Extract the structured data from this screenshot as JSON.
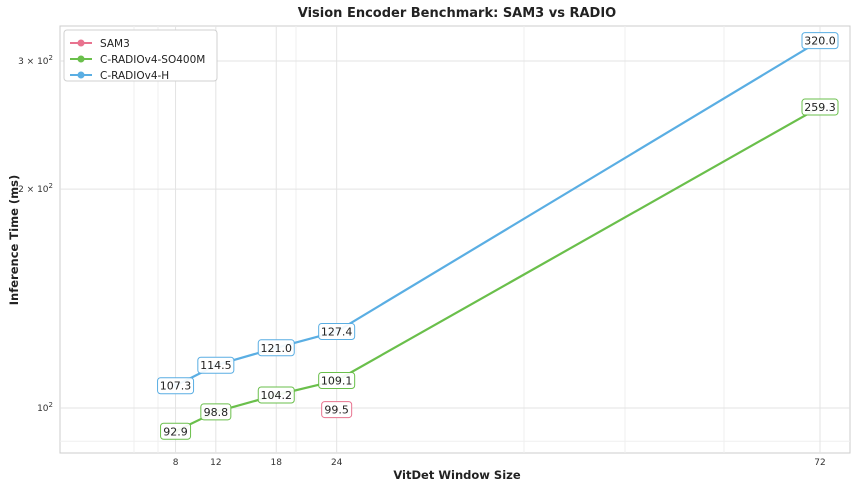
{
  "chart_data": {
    "type": "line",
    "title": "Vision Encoder Benchmark: SAM3 vs RADIO",
    "xlabel": "VitDet Window Size",
    "ylabel": "Inference Time (ms)",
    "x_ticks": [
      "8",
      "12",
      "18",
      "24",
      "72"
    ],
    "y_scale": "log",
    "y_ticks": [
      {
        "value": 100,
        "base": "10",
        "exp": "2"
      },
      {
        "value": 200,
        "base": "2 × 10",
        "exp": "2"
      },
      {
        "value": 300,
        "base": "3 × 10",
        "exp": "2"
      }
    ],
    "ylim": [
      88,
      340
    ],
    "grid": true,
    "legend_position": "top-left",
    "series": [
      {
        "name": "SAM3",
        "color": "#e8738f",
        "x": [
          24
        ],
        "values": [
          99.5
        ],
        "labels": [
          "99.5"
        ]
      },
      {
        "name": "C-RADIOv4-SO400M",
        "color": "#6abf4b",
        "x": [
          8,
          12,
          18,
          24,
          72
        ],
        "values": [
          92.9,
          98.8,
          104.2,
          109.1,
          259.3
        ],
        "labels": [
          "92.9",
          "98.8",
          "104.2",
          "109.1",
          "259.3"
        ]
      },
      {
        "name": "C-RADIOv4-H",
        "color": "#5aaee3",
        "x": [
          8,
          12,
          18,
          24,
          72
        ],
        "values": [
          107.3,
          114.5,
          121.0,
          127.4,
          320.0
        ],
        "labels": [
          "107.3",
          "114.5",
          "121.0",
          "127.4",
          "320.0"
        ]
      }
    ]
  }
}
